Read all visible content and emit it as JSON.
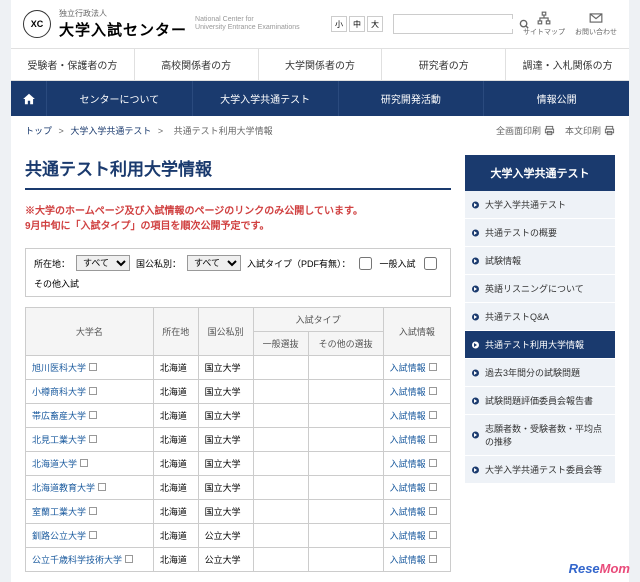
{
  "header": {
    "logo_sub": "独立行政法人",
    "logo_main": "大学入試センター",
    "logo_en1": "National Center for",
    "logo_en2": "University Entrance Examinations",
    "sitemap": "サイトマップ",
    "contact": "お問い合わせ",
    "font_s": "小",
    "font_m": "中",
    "font_l": "大"
  },
  "nav1": [
    "受験者・保護者の方",
    "高校関係者の方",
    "大学関係者の方",
    "研究者の方",
    "調達・入札関係の方"
  ],
  "nav2": [
    "センターについて",
    "大学入学共通テスト",
    "研究開発活動",
    "情報公開"
  ],
  "crumb": {
    "top": "トップ",
    "c1": "大学入学共通テスト",
    "c2": "共通テスト利用大学情報",
    "sep": ">",
    "print_all": "全画面印刷",
    "print_body": "本文印刷"
  },
  "title": "共通テスト利用大学情報",
  "notice": "※大学のホームページ及び入試情報のページのリンクのみ公開しています。\n 9月中旬に「入試タイプ」の項目を順次公開予定です。",
  "filter": {
    "loc_label": "所在地：",
    "loc_all": "すべて",
    "type_label": "国公私別：",
    "type_all": "すべて",
    "exam_label": "入試タイプ（PDF有無）：",
    "general": "一般入試",
    "other": "その他入試"
  },
  "table": {
    "h_name": "大学名",
    "h_loc": "所在地",
    "h_type": "国公私別",
    "h_exam": "入試タイプ",
    "h_general": "一般選抜",
    "h_other": "その他の選抜",
    "h_info": "入試情報",
    "rows": [
      {
        "name": "旭川医科大学",
        "loc": "北海道",
        "type": "国立大学",
        "info": "入試情報"
      },
      {
        "name": "小樽商科大学",
        "loc": "北海道",
        "type": "国立大学",
        "info": "入試情報"
      },
      {
        "name": "帯広畜産大学",
        "loc": "北海道",
        "type": "国立大学",
        "info": "入試情報"
      },
      {
        "name": "北見工業大学",
        "loc": "北海道",
        "type": "国立大学",
        "info": "入試情報"
      },
      {
        "name": "北海道大学",
        "loc": "北海道",
        "type": "国立大学",
        "info": "入試情報"
      },
      {
        "name": "北海道教育大学",
        "loc": "北海道",
        "type": "国立大学",
        "info": "入試情報"
      },
      {
        "name": "室蘭工業大学",
        "loc": "北海道",
        "type": "国立大学",
        "info": "入試情報"
      },
      {
        "name": "釧路公立大学",
        "loc": "北海道",
        "type": "公立大学",
        "info": "入試情報"
      },
      {
        "name": "公立千歳科学技術大学",
        "loc": "北海道",
        "type": "公立大学",
        "info": "入試情報"
      }
    ]
  },
  "sidebar": {
    "head": "大学入学共通テスト",
    "items": [
      {
        "label": "大学入学共通テスト",
        "active": false
      },
      {
        "label": "共通テストの概要",
        "active": false
      },
      {
        "label": "試験情報",
        "active": false
      },
      {
        "label": "英語リスニングについて",
        "active": false
      },
      {
        "label": "共通テストQ&A",
        "active": false
      },
      {
        "label": "共通テスト利用大学情報",
        "active": true
      },
      {
        "label": "過去3年間分の試験問題",
        "active": false
      },
      {
        "label": "試験問題評価委員会報告書",
        "active": false
      },
      {
        "label": "志願者数・受験者数・平均点の推移",
        "active": false
      },
      {
        "label": "大学入学共通テスト委員会等",
        "active": false
      }
    ]
  }
}
